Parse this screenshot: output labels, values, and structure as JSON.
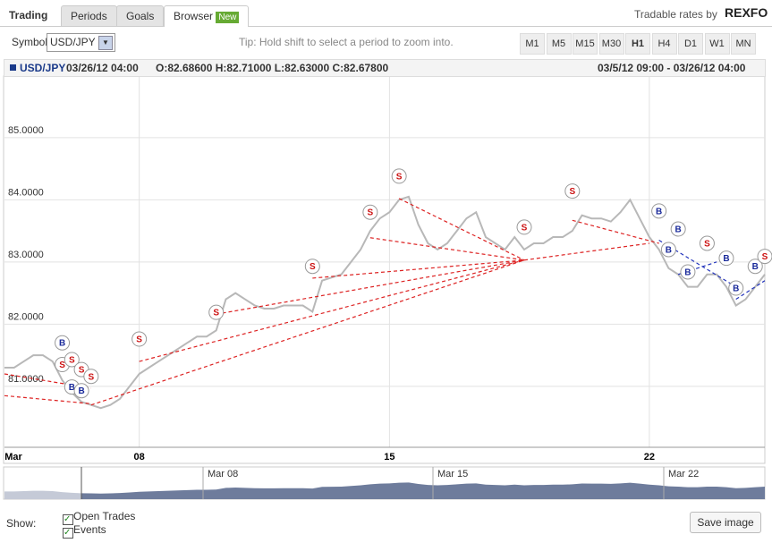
{
  "tabs": [
    "Trading",
    "Periods",
    "Goals",
    "Browser"
  ],
  "new_badge": "New",
  "brand": {
    "prefix": "Tradable rates by",
    "name": "REXFO"
  },
  "toolbar": {
    "symbol_label": "Symbol",
    "symbol_value": "USD/JPY",
    "tip": "Tip: Hold shift to select a period to zoom into.",
    "periods": [
      "M1",
      "M5",
      "M15",
      "M30",
      "H1",
      "H4",
      "D1",
      "W1",
      "MN"
    ],
    "active_period": "H1"
  },
  "info": {
    "symbol": "USD/JPY",
    "time": "03/26/12 04:00",
    "ohlc": "O:82.68600 H:82.71000 L:82.63000 C:82.67800",
    "range": "03/5/12 09:00 - 03/26/12 04:00"
  },
  "chart_data": {
    "type": "line",
    "categories": [
      "Mar",
      null,
      null,
      null,
      null,
      null,
      null,
      null,
      null,
      null,
      null,
      null,
      null,
      null,
      "08",
      null,
      null,
      null,
      null,
      null,
      null,
      null,
      null,
      null,
      null,
      null,
      null,
      null,
      null,
      null,
      null,
      null,
      null,
      null,
      null,
      null,
      null,
      null,
      null,
      null,
      "15",
      null,
      null,
      null,
      null,
      null,
      null,
      null,
      null,
      null,
      null,
      null,
      null,
      null,
      null,
      null,
      null,
      null,
      null,
      null,
      null,
      null,
      null,
      null,
      null,
      null,
      null,
      "22",
      null,
      null,
      null,
      null,
      null,
      null,
      null,
      null,
      null,
      null,
      null,
      null
    ],
    "series": [
      {
        "name": "USD/JPY",
        "color": "#b8b8b8",
        "values": [
          81.3,
          81.3,
          81.4,
          81.5,
          81.5,
          81.4,
          81.1,
          80.9,
          80.75,
          80.7,
          80.65,
          80.7,
          80.8,
          81.0,
          81.2,
          81.3,
          81.4,
          81.5,
          81.6,
          81.7,
          81.8,
          81.8,
          81.9,
          82.4,
          82.5,
          82.4,
          82.3,
          82.25,
          82.25,
          82.3,
          82.3,
          82.3,
          82.2,
          82.7,
          82.75,
          82.8,
          83.0,
          83.2,
          83.5,
          83.7,
          83.8,
          84.0,
          84.05,
          83.6,
          83.3,
          83.2,
          83.3,
          83.5,
          83.7,
          83.8,
          83.4,
          83.3,
          83.2,
          83.4,
          83.2,
          83.3,
          83.3,
          83.4,
          83.4,
          83.5,
          83.75,
          83.7,
          83.7,
          83.65,
          83.8,
          84.0,
          83.7,
          83.4,
          83.2,
          82.9,
          82.8,
          82.6,
          82.6,
          82.8,
          82.8,
          82.6,
          82.3,
          82.4,
          82.6,
          82.8
        ]
      }
    ],
    "ylim": [
      80.02,
      85.99
    ],
    "yticks": [
      {
        "value": 81,
        "label": "81.0000"
      },
      {
        "value": 82,
        "label": "82.0000"
      },
      {
        "value": 83,
        "label": "83.0000"
      },
      {
        "value": 84,
        "label": "84.0000"
      },
      {
        "value": 85,
        "label": "85.0000"
      }
    ],
    "grid": true,
    "markers": [
      {
        "text": "B",
        "index": 6,
        "value": 81.7,
        "color": "#1a2a9a"
      },
      {
        "text": "S",
        "index": 6,
        "value": 81.35,
        "color": "#cc1111"
      },
      {
        "text": "S",
        "index": 7,
        "value": 81.43,
        "color": "#cc1111"
      },
      {
        "text": "S",
        "index": 8,
        "value": 81.27,
        "color": "#cc1111"
      },
      {
        "text": "S",
        "index": 9,
        "value": 81.16,
        "color": "#cc1111"
      },
      {
        "text": "B",
        "index": 7,
        "value": 80.99,
        "color": "#1a2a9a"
      },
      {
        "text": "B",
        "index": 8,
        "value": 80.93,
        "color": "#1a2a9a"
      },
      {
        "text": "S",
        "index": 14,
        "value": 81.76,
        "color": "#cc1111"
      },
      {
        "text": "S",
        "index": 22,
        "value": 82.19,
        "color": "#cc1111"
      },
      {
        "text": "S",
        "index": 32,
        "value": 82.93,
        "color": "#cc1111"
      },
      {
        "text": "S",
        "index": 38,
        "value": 83.8,
        "color": "#cc1111"
      },
      {
        "text": "S",
        "index": 41,
        "value": 84.38,
        "color": "#cc1111"
      },
      {
        "text": "S",
        "index": 54,
        "value": 83.56,
        "color": "#cc1111"
      },
      {
        "text": "S",
        "index": 59,
        "value": 84.14,
        "color": "#cc1111"
      },
      {
        "text": "B",
        "index": 68,
        "value": 83.82,
        "color": "#1a2a9a"
      },
      {
        "text": "B",
        "index": 70,
        "value": 83.53,
        "color": "#1a2a9a"
      },
      {
        "text": "B",
        "index": 69,
        "value": 83.2,
        "color": "#1a2a9a"
      },
      {
        "text": "B",
        "index": 71,
        "value": 82.84,
        "color": "#1a2a9a"
      },
      {
        "text": "S",
        "index": 73,
        "value": 83.3,
        "color": "#cc1111"
      },
      {
        "text": "B",
        "index": 75,
        "value": 83.06,
        "color": "#1a2a9a"
      },
      {
        "text": "B",
        "index": 76,
        "value": 82.58,
        "color": "#1a2a9a"
      },
      {
        "text": "B",
        "index": 78,
        "value": 82.93,
        "color": "#1a2a9a"
      },
      {
        "text": "S",
        "index": 79,
        "value": 83.09,
        "color": "#cc1111"
      }
    ],
    "trades": [
      {
        "from": [
          0,
          81.2
        ],
        "to": [
          9,
          80.97
        ],
        "color": "#dd2222"
      },
      {
        "from": [
          0,
          80.85
        ],
        "to": [
          9,
          80.72
        ],
        "color": "#dd2222"
      },
      {
        "from": [
          9,
          80.7
        ],
        "to": [
          54,
          83.03
        ],
        "color": "#dd2222"
      },
      {
        "from": [
          14,
          81.4
        ],
        "to": [
          54,
          83.03
        ],
        "color": "#dd2222"
      },
      {
        "from": [
          22,
          82.16
        ],
        "to": [
          54,
          83.03
        ],
        "color": "#dd2222"
      },
      {
        "from": [
          32,
          82.74
        ],
        "to": [
          54,
          83.03
        ],
        "color": "#dd2222"
      },
      {
        "from": [
          38,
          83.39
        ],
        "to": [
          54,
          83.03
        ],
        "color": "#dd2222"
      },
      {
        "from": [
          41,
          84.02
        ],
        "to": [
          54,
          83.03
        ],
        "color": "#dd2222"
      },
      {
        "from": [
          54,
          83.03
        ],
        "to": [
          67,
          83.3
        ],
        "color": "#dd2222"
      },
      {
        "from": [
          59,
          83.67
        ],
        "to": [
          68,
          83.3
        ],
        "color": "#dd2222"
      },
      {
        "from": [
          68,
          83.35
        ],
        "to": [
          76,
          82.6
        ],
        "color": "#2233bb"
      },
      {
        "from": [
          70,
          82.8
        ],
        "to": [
          74,
          83.0
        ],
        "color": "#2233bb"
      },
      {
        "from": [
          76,
          82.4
        ],
        "to": [
          79,
          82.7
        ],
        "color": "#2233bb"
      }
    ]
  },
  "navigator": {
    "labels": [
      "Mar 08",
      "Mar 15",
      "Mar 22"
    ]
  },
  "footer": {
    "show_label": "Show:",
    "options": [
      "Open Trades",
      "Events"
    ],
    "save_button": "Save image"
  }
}
